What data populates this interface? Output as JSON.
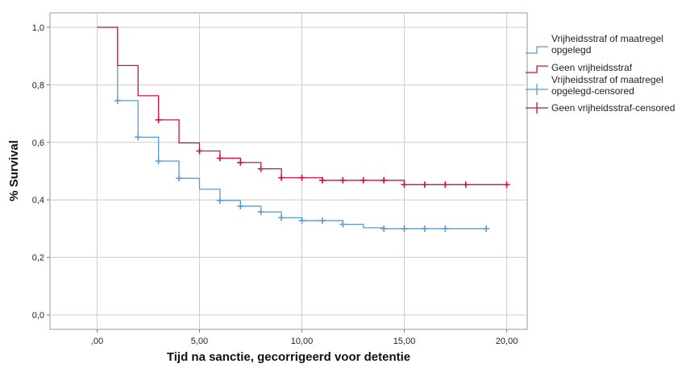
{
  "chart_data": {
    "type": "line",
    "title": "",
    "xlabel": "Tijd na sanctie, gecorrigeerd voor detentie",
    "ylabel": "% Survival",
    "xlim": [
      -2.3,
      21.0
    ],
    "ylim": [
      -0.05,
      1.05
    ],
    "xticks": [
      {
        "value": 0,
        "label": ",00"
      },
      {
        "value": 5,
        "label": "5,00"
      },
      {
        "value": 10,
        "label": "10,00"
      },
      {
        "value": 15,
        "label": "15,00"
      },
      {
        "value": 20,
        "label": "20,00"
      }
    ],
    "yticks": [
      {
        "value": 0.0,
        "label": "0,0"
      },
      {
        "value": 0.2,
        "label": "0,2"
      },
      {
        "value": 0.4,
        "label": "0,4"
      },
      {
        "value": 0.6,
        "label": "0,6"
      },
      {
        "value": 0.8,
        "label": "0,8"
      },
      {
        "value": 1.0,
        "label": "1,0"
      }
    ],
    "grid": true,
    "legend_position": "right",
    "series": [
      {
        "name": "Vrijheidsstraf of maatregel opgelegd",
        "color": "#5b9bd5",
        "steps": [
          {
            "x": 0,
            "y": 1.0
          },
          {
            "x": 1,
            "y": 0.745
          },
          {
            "x": 2,
            "y": 0.618
          },
          {
            "x": 3,
            "y": 0.535
          },
          {
            "x": 4,
            "y": 0.475
          },
          {
            "x": 5,
            "y": 0.437
          },
          {
            "x": 6,
            "y": 0.398
          },
          {
            "x": 7,
            "y": 0.378
          },
          {
            "x": 8,
            "y": 0.358
          },
          {
            "x": 9,
            "y": 0.338
          },
          {
            "x": 10,
            "y": 0.328
          },
          {
            "x": 12,
            "y": 0.315
          },
          {
            "x": 13,
            "y": 0.303
          },
          {
            "x": 14,
            "y": 0.3
          }
        ],
        "end_x": 19
      },
      {
        "name": "Geen vrijheidsstraf",
        "color": "#d0103a",
        "steps": [
          {
            "x": 0,
            "y": 1.0
          },
          {
            "x": 1,
            "y": 0.867
          },
          {
            "x": 2,
            "y": 0.762
          },
          {
            "x": 3,
            "y": 0.678
          },
          {
            "x": 4,
            "y": 0.598
          },
          {
            "x": 5,
            "y": 0.57
          },
          {
            "x": 6,
            "y": 0.545
          },
          {
            "x": 7,
            "y": 0.53
          },
          {
            "x": 8,
            "y": 0.508
          },
          {
            "x": 9,
            "y": 0.477
          },
          {
            "x": 11,
            "y": 0.468
          },
          {
            "x": 15,
            "y": 0.453
          }
        ],
        "end_x": 20
      }
    ],
    "censored": [
      {
        "name": "Vrijheidsstraf of maatregel opgelegd-censored",
        "color": "#5b9bd5",
        "points": [
          {
            "x": 1,
            "y": 0.745
          },
          {
            "x": 2,
            "y": 0.618
          },
          {
            "x": 3,
            "y": 0.535
          },
          {
            "x": 4,
            "y": 0.475
          },
          {
            "x": 6,
            "y": 0.398
          },
          {
            "x": 7,
            "y": 0.378
          },
          {
            "x": 8,
            "y": 0.358
          },
          {
            "x": 9,
            "y": 0.338
          },
          {
            "x": 10,
            "y": 0.328
          },
          {
            "x": 11,
            "y": 0.328
          },
          {
            "x": 12,
            "y": 0.315
          },
          {
            "x": 14,
            "y": 0.3
          },
          {
            "x": 15,
            "y": 0.3
          },
          {
            "x": 16,
            "y": 0.3
          },
          {
            "x": 17,
            "y": 0.3
          },
          {
            "x": 19,
            "y": 0.3
          }
        ]
      },
      {
        "name": "Geen vrijheidsstraf-censored",
        "color": "#d0103a",
        "points": [
          {
            "x": 3,
            "y": 0.678
          },
          {
            "x": 5,
            "y": 0.57
          },
          {
            "x": 6,
            "y": 0.545
          },
          {
            "x": 7,
            "y": 0.53
          },
          {
            "x": 8,
            "y": 0.508
          },
          {
            "x": 9,
            "y": 0.477
          },
          {
            "x": 10,
            "y": 0.477
          },
          {
            "x": 11,
            "y": 0.468
          },
          {
            "x": 12,
            "y": 0.468
          },
          {
            "x": 13,
            "y": 0.468
          },
          {
            "x": 14,
            "y": 0.468
          },
          {
            "x": 15,
            "y": 0.453
          },
          {
            "x": 16,
            "y": 0.453
          },
          {
            "x": 17,
            "y": 0.453
          },
          {
            "x": 18,
            "y": 0.453
          },
          {
            "x": 20,
            "y": 0.453
          }
        ]
      }
    ],
    "legend": [
      {
        "label_lines": [
          "Vrijheidsstraf of maatregel",
          "opgelegd"
        ],
        "color": "#5b9bd5",
        "symbol": "step"
      },
      {
        "label_lines": [
          "Geen vrijheidsstraf"
        ],
        "color": "#d0103a",
        "symbol": "step"
      },
      {
        "label_lines": [
          "Vrijheidsstraf of maatregel",
          "opgelegd-censored"
        ],
        "color": "#5b9bd5",
        "symbol": "plus"
      },
      {
        "label_lines": [
          "Geen vrijheidsstraf-censored"
        ],
        "color": "#d0103a",
        "symbol": "plus"
      }
    ]
  }
}
